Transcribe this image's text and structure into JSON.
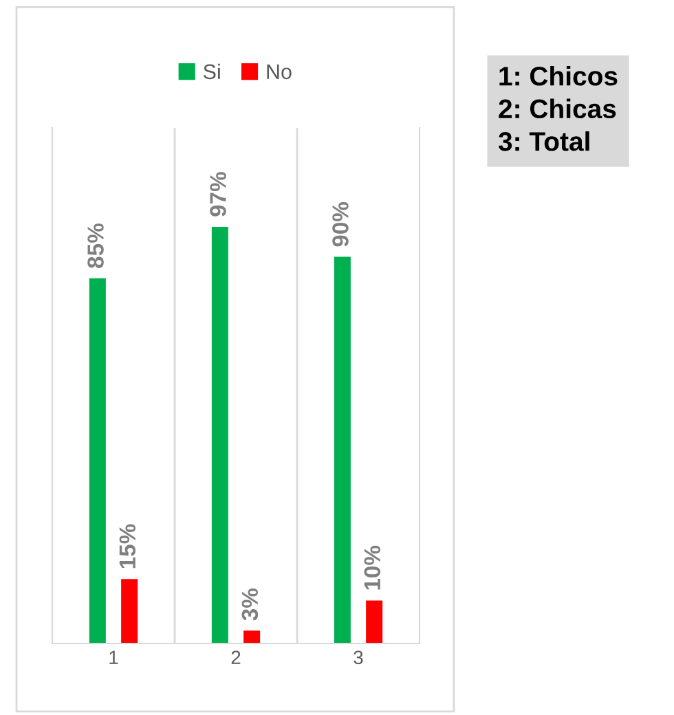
{
  "chart_data": {
    "type": "bar",
    "categories": [
      "1",
      "2",
      "3"
    ],
    "series": [
      {
        "name": "Si",
        "color": "#00b050",
        "values": [
          85,
          97,
          90
        ],
        "value_labels": [
          "85%",
          "97%",
          "90%"
        ]
      },
      {
        "name": "No",
        "color": "#ff0000",
        "values": [
          15,
          3,
          10
        ],
        "value_labels": [
          "15%",
          "3%",
          "10%"
        ]
      }
    ],
    "ylim": [
      0,
      120
    ],
    "tick_labels": "x",
    "grid": "x",
    "legend": "top",
    "annotations": [
      "1: Chicos\n2: Chicas\n3: Total"
    ]
  }
}
